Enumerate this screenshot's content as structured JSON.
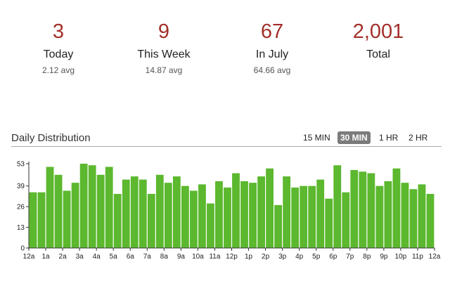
{
  "stats": [
    {
      "value": "3",
      "label": "Today",
      "avg": "2.12 avg"
    },
    {
      "value": "9",
      "label": "This Week",
      "avg": "14.87 avg"
    },
    {
      "value": "67",
      "label": "In July",
      "avg": "64.66 avg"
    },
    {
      "value": "2,001",
      "label": "Total",
      "avg": ""
    }
  ],
  "distribution": {
    "title": "Daily Distribution",
    "intervals": [
      "15 MIN",
      "30 MIN",
      "1 HR",
      "2 HR"
    ],
    "active_interval": "30 MIN"
  },
  "chart_data": {
    "type": "bar",
    "title": "",
    "xlabel": "",
    "ylabel": "",
    "ylim": [
      0,
      53
    ],
    "yticks": [
      0,
      13,
      26,
      39,
      53
    ],
    "xtick_labels": [
      "12a",
      "1a",
      "2a",
      "3a",
      "4a",
      "5a",
      "6a",
      "7a",
      "8a",
      "9a",
      "10a",
      "11a",
      "12p",
      "1p",
      "2p",
      "3p",
      "4p",
      "5p",
      "6p",
      "7p",
      "8p",
      "9p",
      "10p",
      "11p",
      "12a"
    ],
    "bar_color": "#5cb82e",
    "values": [
      35,
      35,
      51,
      46,
      36,
      41,
      53,
      52,
      46,
      51,
      34,
      43,
      45,
      43,
      34,
      46,
      41,
      45,
      39,
      36,
      40,
      28,
      42,
      38,
      47,
      42,
      41,
      45,
      50,
      27,
      45,
      38,
      39,
      39,
      43,
      31,
      52,
      35,
      49,
      48,
      47,
      39,
      42,
      50,
      41,
      37,
      40,
      34
    ]
  }
}
